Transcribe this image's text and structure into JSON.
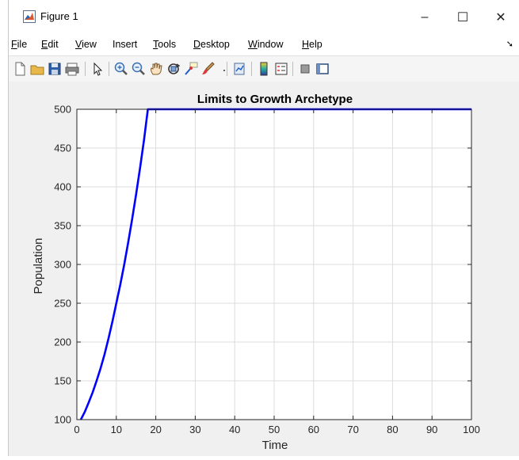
{
  "window": {
    "title": "Figure 1",
    "minimize": "–",
    "maximize": "☐",
    "close": "✕"
  },
  "menu": [
    {
      "mnemonic": "F",
      "rest": "ile"
    },
    {
      "mnemonic": "E",
      "rest": "dit"
    },
    {
      "mnemonic": "V",
      "rest": "iew"
    },
    {
      "mnemonic": "",
      "rest": "Insert"
    },
    {
      "mnemonic": "T",
      "rest": "ools"
    },
    {
      "mnemonic": "D",
      "rest": "esktop"
    },
    {
      "mnemonic": "W",
      "rest": "indow"
    },
    {
      "mnemonic": "H",
      "rest": "elp"
    }
  ],
  "menu_overflow": "➘",
  "toolbar_icons": [
    "new-figure-icon",
    "open-file-icon",
    "save-icon",
    "print-icon",
    "pointer-icon",
    "zoom-in-icon",
    "zoom-out-icon",
    "pan-hand-icon",
    "rotate-3d-icon",
    "data-cursor-icon",
    "brush-icon",
    "link-plot-icon",
    "colorbar-icon",
    "legend-icon",
    "hide-plot-tools-icon",
    "show-plot-tools-icon"
  ],
  "chart_data": {
    "type": "line",
    "title": "Limits to Growth Archetype",
    "xlabel": "Time",
    "ylabel": "Population",
    "xlim": [
      0,
      100
    ],
    "ylim": [
      100,
      500
    ],
    "xticks": [
      0,
      10,
      20,
      30,
      40,
      50,
      60,
      70,
      80,
      90,
      100
    ],
    "yticks": [
      100,
      150,
      200,
      250,
      300,
      350,
      400,
      450,
      500
    ],
    "grid": true,
    "series": [
      {
        "color": "#0000ff",
        "x": [
          1,
          2,
          3,
          4,
          5,
          6,
          7,
          8,
          9,
          10,
          11,
          12,
          13,
          14,
          15,
          16,
          17,
          18,
          100
        ],
        "y": [
          100,
          110,
          122,
          135,
          150,
          166,
          184,
          204,
          226,
          250,
          274,
          300,
          328,
          358,
          390,
          424,
          460,
          500,
          500
        ]
      }
    ]
  }
}
